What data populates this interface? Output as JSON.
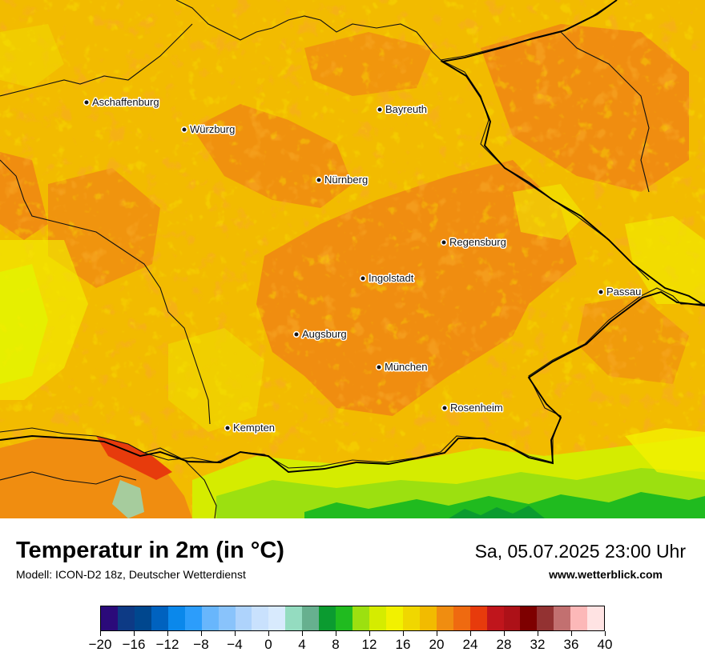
{
  "map": {
    "cities": [
      {
        "name": "Aschaffenburg"
      },
      {
        "name": "Würzburg"
      },
      {
        "name": "Bayreuth"
      },
      {
        "name": "Nürnberg"
      },
      {
        "name": "Regensburg"
      },
      {
        "name": "Ingolstadt"
      },
      {
        "name": "Passau"
      },
      {
        "name": "Augsburg"
      },
      {
        "name": "München"
      },
      {
        "name": "Rosenheim"
      },
      {
        "name": "Kempten"
      }
    ]
  },
  "footer": {
    "title": "Temperatur in 2m (in °C)",
    "subtitle": "Modell: ICON-D2 18z, Deutscher Wetterdienst",
    "datetime": "Sa, 05.07.2025 23:00 Uhr",
    "website": "www.wetterblick.com"
  },
  "legend": {
    "colors": [
      "#2b0a7a",
      "#0d3a85",
      "#00478e",
      "#0062bf",
      "#0a88eb",
      "#2c9dfb",
      "#68b6fc",
      "#89c3fb",
      "#aed3fc",
      "#c9e1fd",
      "#d8eafd",
      "#94dcc0",
      "#67b08f",
      "#0b9b30",
      "#20bb1f",
      "#9ce010",
      "#d5ec00",
      "#f2f100",
      "#f0d700",
      "#f2bb00",
      "#f08d10",
      "#ef6a10",
      "#e73b0c",
      "#c0151c",
      "#ad1118",
      "#7e0000",
      "#933232",
      "#c27070",
      "#fcb8b8",
      "#ffe3e3"
    ],
    "tick_labels": [
      "−20",
      "−16",
      "−12",
      "−8",
      "−4",
      "0",
      "4",
      "8",
      "12",
      "16",
      "20",
      "24",
      "28",
      "32",
      "36",
      "40"
    ],
    "min": -20,
    "max": 40
  }
}
